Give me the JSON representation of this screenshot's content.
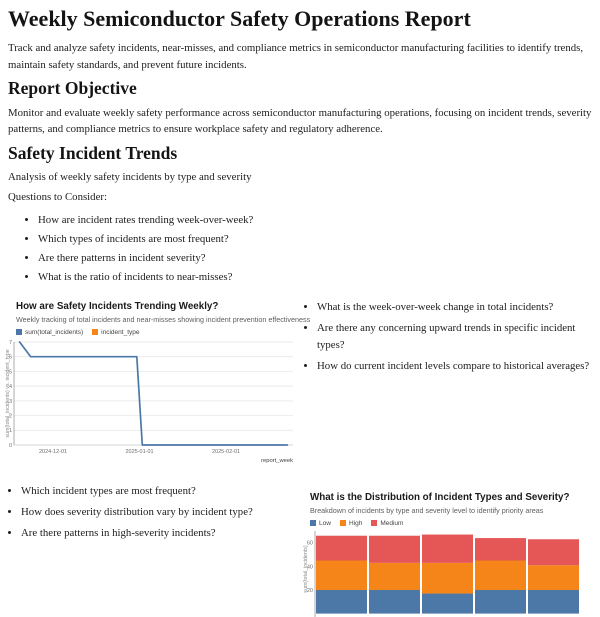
{
  "header": {
    "title": "Weekly Semiconductor Safety Operations Report",
    "description": "Track and analyze safety incidents, near-misses, and compliance metrics in semiconductor manufacturing facilities to identify trends, maintain safety standards, and prevent future incidents."
  },
  "objective": {
    "heading": "Report Objective",
    "body": "Monitor and evaluate weekly safety performance across semiconductor manufacturing operations, focusing on incident trends, severity patterns, and compliance metrics to ensure workplace safety and regulatory adherence."
  },
  "trends": {
    "heading": "Safety Incident Trends",
    "subheading": "Analysis of weekly safety incidents by type and severity",
    "questions_label": "Questions to Consider:",
    "questions": [
      "How are incident rates trending week-over-week?",
      "Which types of incidents are most frequent?",
      "Are there patterns in incident severity?",
      "What is the ratio of incidents to near-misses?"
    ],
    "weekly_questions": [
      "What is the week-over-week change in total incidents?",
      "Are there any concerning upward trends in specific incident types?",
      "How do current incident levels compare to historical averages?"
    ],
    "distribution_questions": [
      "Which incident types are most frequent?",
      "How does severity distribution vary by incident type?",
      "Are there patterns in high-severity incidents?"
    ]
  },
  "chart_data": [
    {
      "type": "line",
      "title": "How are Safety Incidents Trending Weekly?",
      "subtitle": "Weekly tracking of total incidents and near-misses showing incident prevention effectiveness",
      "xlabel": "report_week",
      "ylabel": "sum(total_incidents) vs. incident_type",
      "legend": [
        {
          "label": "sum(total_incidents)",
          "color": "#4c78a8"
        },
        {
          "label": "incident_type",
          "color": "#f58518"
        }
      ],
      "legend_position": "top-left",
      "grid": true,
      "x_domain": [
        "2024-11-17",
        "2025-02-25"
      ],
      "x_ticks": [
        "2024-12-01",
        "2025-01-01",
        "2025-02-01"
      ],
      "y_ticks": [
        0,
        1,
        2,
        3,
        4,
        5,
        6,
        7
      ],
      "ylim": [
        0,
        7
      ],
      "series": [
        {
          "name": "sum(total_incidents)",
          "color": "#4c78a8",
          "x": [
            "2024-11-19",
            "2024-11-23",
            "2024-12-01",
            "2024-12-08",
            "2024-12-15",
            "2024-12-22",
            "2024-12-31",
            "2025-01-02",
            "2025-01-12",
            "2025-01-26",
            "2025-02-09",
            "2025-02-23"
          ],
          "values": [
            7,
            6,
            6,
            6,
            6,
            6,
            6,
            0,
            0,
            0,
            0,
            0
          ]
        }
      ]
    },
    {
      "type": "bar",
      "stacked": true,
      "title": "What is the Distribution of Incident Types and Severity?",
      "subtitle": "Breakdown of incidents by type and severity level to identify priority areas",
      "ylabel": "sum(total_incidents)",
      "legend": [
        {
          "label": "Low",
          "color": "#4c78a8"
        },
        {
          "label": "High",
          "color": "#f58518"
        },
        {
          "label": "Medium",
          "color": "#e45756"
        }
      ],
      "legend_position": "top-left",
      "y_ticks": [
        20,
        40,
        60
      ],
      "ylim": [
        0,
        70
      ],
      "categories": [
        "",
        "",
        "",
        "",
        ""
      ],
      "series": [
        {
          "name": "Low",
          "color": "#4c78a8",
          "values": [
            20,
            20,
            17,
            20,
            20
          ]
        },
        {
          "name": "High",
          "color": "#f58518",
          "values": [
            25,
            23,
            26,
            25,
            21
          ]
        },
        {
          "name": "Medium",
          "color": "#e45756",
          "values": [
            21,
            23,
            24,
            19,
            22
          ]
        }
      ]
    }
  ]
}
